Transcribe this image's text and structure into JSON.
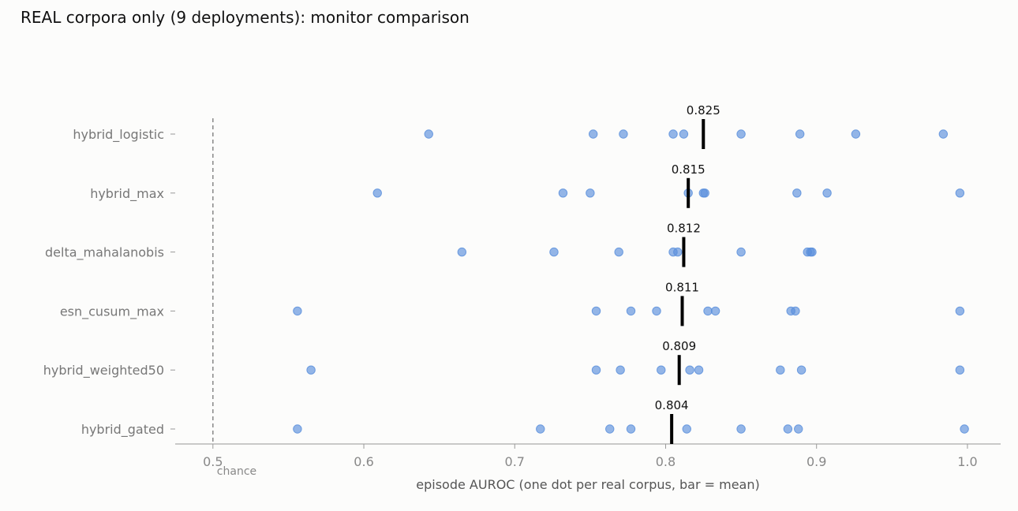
{
  "chart_data": {
    "type": "scatter",
    "title": "REAL corpora only (9 deployments): monitor comparison",
    "xlabel": "episode AUROC (one dot per real corpus, bar = mean)",
    "ylabel": "",
    "xlim": [
      0.475,
      1.022
    ],
    "xticks": [
      "0.5",
      "0.6",
      "0.7",
      "0.8",
      "0.9",
      "1.0"
    ],
    "xtick_values": [
      0.5,
      0.6,
      0.7,
      0.8,
      0.9,
      1.0
    ],
    "reference_line": {
      "x": 0.5,
      "label": "chance",
      "style": "dashed"
    },
    "grid": false,
    "point_color": "#5b8fdc",
    "mean_bar_color": "#000000",
    "monitors": [
      {
        "name": "hybrid_logistic",
        "mean": 0.825,
        "mean_label": "0.825",
        "values": [
          0.643,
          0.752,
          0.772,
          0.805,
          0.812,
          0.85,
          0.889,
          0.926,
          0.984
        ]
      },
      {
        "name": "hybrid_max",
        "mean": 0.815,
        "mean_label": "0.815",
        "values": [
          0.609,
          0.732,
          0.75,
          0.815,
          0.825,
          0.826,
          0.887,
          0.907,
          0.995
        ]
      },
      {
        "name": "delta_mahalanobis",
        "mean": 0.812,
        "mean_label": "0.812",
        "values": [
          0.665,
          0.726,
          0.769,
          0.805,
          0.808,
          0.85,
          0.894,
          0.896,
          0.897
        ]
      },
      {
        "name": "esn_cusum_max",
        "mean": 0.811,
        "mean_label": "0.811",
        "values": [
          0.556,
          0.754,
          0.777,
          0.794,
          0.828,
          0.833,
          0.883,
          0.886,
          0.995
        ]
      },
      {
        "name": "hybrid_weighted50",
        "mean": 0.809,
        "mean_label": "0.809",
        "values": [
          0.565,
          0.754,
          0.77,
          0.797,
          0.816,
          0.822,
          0.876,
          0.89,
          0.995
        ]
      },
      {
        "name": "hybrid_gated",
        "mean": 0.804,
        "mean_label": "0.804",
        "values": [
          0.556,
          0.717,
          0.763,
          0.777,
          0.814,
          0.85,
          0.881,
          0.888,
          0.998
        ]
      }
    ]
  }
}
